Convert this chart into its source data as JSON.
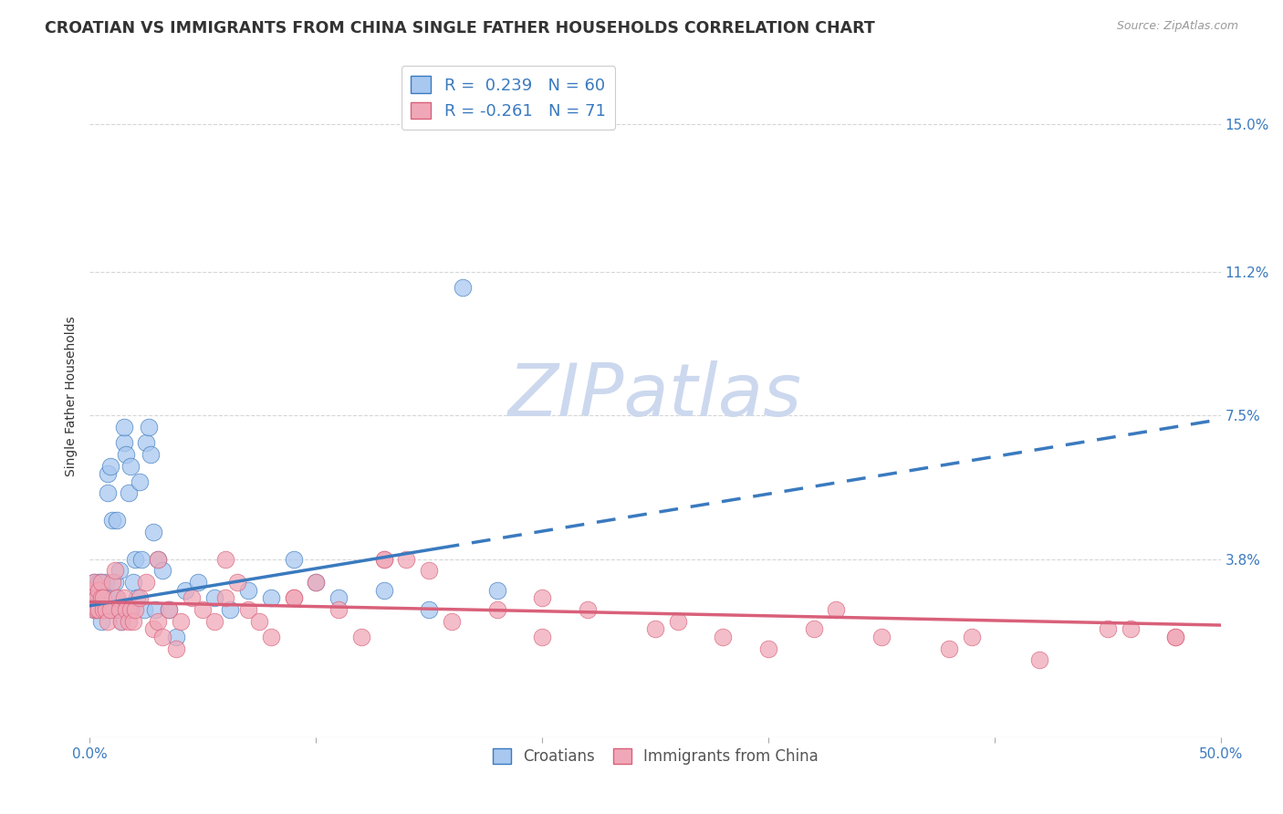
{
  "title": "CROATIAN VS IMMIGRANTS FROM CHINA SINGLE FATHER HOUSEHOLDS CORRELATION CHART",
  "source": "Source: ZipAtlas.com",
  "ylabel": "Single Father Households",
  "yticks": [
    "15.0%",
    "11.2%",
    "7.5%",
    "3.8%"
  ],
  "ytick_vals": [
    0.15,
    0.112,
    0.075,
    0.038
  ],
  "xlim": [
    0.0,
    0.5
  ],
  "ylim": [
    -0.008,
    0.168
  ],
  "watermark": "ZIPatlas",
  "blue_scatter_x": [
    0.001,
    0.002,
    0.002,
    0.003,
    0.003,
    0.004,
    0.004,
    0.005,
    0.005,
    0.005,
    0.006,
    0.006,
    0.007,
    0.007,
    0.008,
    0.008,
    0.009,
    0.009,
    0.01,
    0.01,
    0.011,
    0.011,
    0.012,
    0.012,
    0.013,
    0.013,
    0.014,
    0.015,
    0.015,
    0.016,
    0.017,
    0.018,
    0.019,
    0.02,
    0.021,
    0.022,
    0.023,
    0.024,
    0.025,
    0.026,
    0.027,
    0.028,
    0.029,
    0.03,
    0.032,
    0.035,
    0.038,
    0.042,
    0.048,
    0.055,
    0.062,
    0.07,
    0.08,
    0.09,
    0.1,
    0.11,
    0.13,
    0.15,
    0.165,
    0.18
  ],
  "blue_scatter_y": [
    0.028,
    0.032,
    0.025,
    0.03,
    0.025,
    0.028,
    0.032,
    0.022,
    0.028,
    0.032,
    0.025,
    0.03,
    0.028,
    0.032,
    0.055,
    0.06,
    0.062,
    0.025,
    0.048,
    0.028,
    0.025,
    0.032,
    0.048,
    0.028,
    0.035,
    0.025,
    0.022,
    0.068,
    0.072,
    0.065,
    0.055,
    0.062,
    0.032,
    0.038,
    0.028,
    0.058,
    0.038,
    0.025,
    0.068,
    0.072,
    0.065,
    0.045,
    0.025,
    0.038,
    0.035,
    0.025,
    0.018,
    0.03,
    0.032,
    0.028,
    0.025,
    0.03,
    0.028,
    0.038,
    0.032,
    0.028,
    0.03,
    0.025,
    0.108,
    0.03
  ],
  "pink_scatter_x": [
    0.001,
    0.002,
    0.002,
    0.003,
    0.003,
    0.004,
    0.004,
    0.005,
    0.005,
    0.006,
    0.006,
    0.007,
    0.008,
    0.009,
    0.01,
    0.011,
    0.012,
    0.013,
    0.014,
    0.015,
    0.016,
    0.017,
    0.018,
    0.019,
    0.02,
    0.022,
    0.025,
    0.028,
    0.03,
    0.032,
    0.035,
    0.038,
    0.04,
    0.045,
    0.05,
    0.055,
    0.06,
    0.065,
    0.07,
    0.075,
    0.08,
    0.09,
    0.1,
    0.11,
    0.12,
    0.13,
    0.14,
    0.15,
    0.16,
    0.18,
    0.2,
    0.22,
    0.25,
    0.28,
    0.3,
    0.32,
    0.35,
    0.38,
    0.42,
    0.45,
    0.48,
    0.03,
    0.06,
    0.09,
    0.13,
    0.2,
    0.26,
    0.33,
    0.39,
    0.46,
    0.48
  ],
  "pink_scatter_y": [
    0.03,
    0.025,
    0.032,
    0.028,
    0.025,
    0.03,
    0.025,
    0.032,
    0.028,
    0.025,
    0.028,
    0.025,
    0.022,
    0.025,
    0.032,
    0.035,
    0.028,
    0.025,
    0.022,
    0.028,
    0.025,
    0.022,
    0.025,
    0.022,
    0.025,
    0.028,
    0.032,
    0.02,
    0.022,
    0.018,
    0.025,
    0.015,
    0.022,
    0.028,
    0.025,
    0.022,
    0.028,
    0.032,
    0.025,
    0.022,
    0.018,
    0.028,
    0.032,
    0.025,
    0.018,
    0.038,
    0.038,
    0.035,
    0.022,
    0.025,
    0.018,
    0.025,
    0.02,
    0.018,
    0.015,
    0.02,
    0.018,
    0.015,
    0.012,
    0.02,
    0.018,
    0.038,
    0.038,
    0.028,
    0.038,
    0.028,
    0.022,
    0.025,
    0.018,
    0.02,
    0.018
  ],
  "blue_line_x0": 0.0,
  "blue_line_x1": 0.5,
  "blue_line_y0": 0.026,
  "blue_line_y1": 0.074,
  "blue_line_solid_end": 0.155,
  "pink_line_x0": 0.0,
  "pink_line_x1": 0.5,
  "pink_line_y0": 0.027,
  "pink_line_y1": 0.021,
  "blue_color": "#3a7abf",
  "pink_color": "#d9607a",
  "blue_scatter_color": "#a8c8f0",
  "pink_scatter_color": "#f0a8b8",
  "grid_color": "#cccccc",
  "bg_color": "#ffffff",
  "title_fontsize": 12.5,
  "source_fontsize": 9,
  "axis_label_fontsize": 10,
  "tick_fontsize": 11,
  "watermark_color": "#ccd8ee",
  "watermark_fontsize": 58,
  "legend_label_1": "R =  0.239   N = 60",
  "legend_label_2": "R = -0.261   N = 71",
  "bottom_legend_1": "Croatians",
  "bottom_legend_2": "Immigrants from China"
}
